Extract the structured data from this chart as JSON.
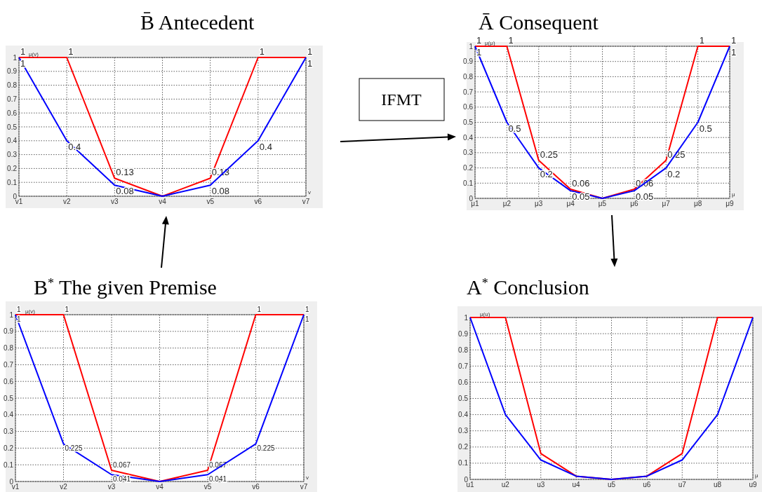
{
  "chart_data": [
    {
      "type": "line",
      "title": "B̄   Antecedent",
      "xlabel": "v",
      "ylabel": "μ(v)",
      "categories": [
        "v1",
        "v2",
        "v3",
        "v4",
        "v5",
        "v6",
        "v7"
      ],
      "ylim": [
        0,
        1
      ],
      "yticks": [
        0,
        0.1,
        0.2,
        0.3,
        0.4,
        0.5,
        0.6,
        0.7,
        0.8,
        0.9,
        1
      ],
      "grid": true,
      "series": [
        {
          "color": "#ff0000",
          "values": [
            1,
            1,
            0.13,
            0,
            0.13,
            1,
            1
          ],
          "value_labels": [
            "1",
            "1",
            "0.13",
            null,
            "0.13",
            "1",
            "1"
          ]
        },
        {
          "color": "#0000ff",
          "values": [
            1,
            0.4,
            0.08,
            0,
            0.08,
            0.4,
            1
          ],
          "value_labels": [
            "1",
            "0.4",
            "0.08",
            null,
            "0.08",
            "0.4",
            "1"
          ]
        }
      ]
    },
    {
      "type": "line",
      "title": "Ā    Consequent",
      "xlabel": "μ",
      "ylabel": "μ(μ)",
      "annotations": [
        "IFMT"
      ],
      "categories": [
        "μ1",
        "μ2",
        "μ3",
        "μ4",
        "μ5",
        "μ6",
        "μ7",
        "μ8",
        "μ9"
      ],
      "ylim": [
        0,
        1
      ],
      "yticks": [
        0,
        0.1,
        0.2,
        0.3,
        0.4,
        0.5,
        0.6,
        0.7,
        0.8,
        0.9,
        1
      ],
      "grid": true,
      "series": [
        {
          "color": "#ff0000",
          "values": [
            1,
            1,
            0.25,
            0.06,
            0,
            0.06,
            0.25,
            1,
            1
          ],
          "value_labels": [
            "1",
            "1",
            "0.25",
            "0.06",
            null,
            "0.06",
            "0.25",
            "1",
            "1"
          ]
        },
        {
          "color": "#0000ff",
          "values": [
            1,
            0.5,
            0.2,
            0.05,
            0,
            0.05,
            0.2,
            0.5,
            1
          ],
          "value_labels": [
            "1",
            "0.5",
            "0.2",
            "0.05",
            null,
            "0.05",
            "0.2",
            "0.5",
            "1"
          ]
        }
      ]
    },
    {
      "type": "line",
      "title": "B$^{*}$  The given Premise",
      "xlabel": "v",
      "ylabel": "μ(v)",
      "categories": [
        "v1",
        "v2",
        "v3",
        "v4",
        "v5",
        "v6",
        "v7"
      ],
      "ylim": [
        0,
        1
      ],
      "yticks": [
        0,
        0.1,
        0.2,
        0.3,
        0.4,
        0.5,
        0.6,
        0.7,
        0.8,
        0.9,
        1
      ],
      "grid": true,
      "series": [
        {
          "color": "#ff0000",
          "values": [
            1,
            1,
            0.067,
            0,
            0.067,
            1,
            1
          ],
          "value_labels": [
            "1",
            "1",
            "0.067",
            null,
            "0.067",
            "1",
            "1"
          ]
        },
        {
          "color": "#0000ff",
          "values": [
            1,
            0.225,
            0.041,
            0,
            0.041,
            0.225,
            1
          ],
          "value_labels": [
            "1",
            "0.225",
            "0.041",
            null,
            "0.041",
            "0.225",
            "1"
          ]
        }
      ]
    },
    {
      "type": "line",
      "title": "A$^{*}$    Conclusion",
      "xlabel": "μ",
      "ylabel": "μ(u)",
      "categories": [
        "u1",
        "u2",
        "u3",
        "u4",
        "u5",
        "u6",
        "u7",
        "u8",
        "u9"
      ],
      "ylim": [
        0,
        1
      ],
      "yticks": [
        0,
        0.1,
        0.2,
        0.3,
        0.4,
        0.5,
        0.6,
        0.7,
        0.8,
        0.9,
        1
      ],
      "grid": true,
      "series": [
        {
          "color": "#ff0000",
          "values": [
            1,
            1,
            0.16,
            0.02,
            0,
            0.02,
            0.16,
            1,
            1
          ]
        },
        {
          "color": "#0000ff",
          "values": [
            1,
            0.4,
            0.12,
            0.02,
            0,
            0.02,
            0.12,
            0.4,
            1
          ]
        }
      ]
    }
  ]
}
